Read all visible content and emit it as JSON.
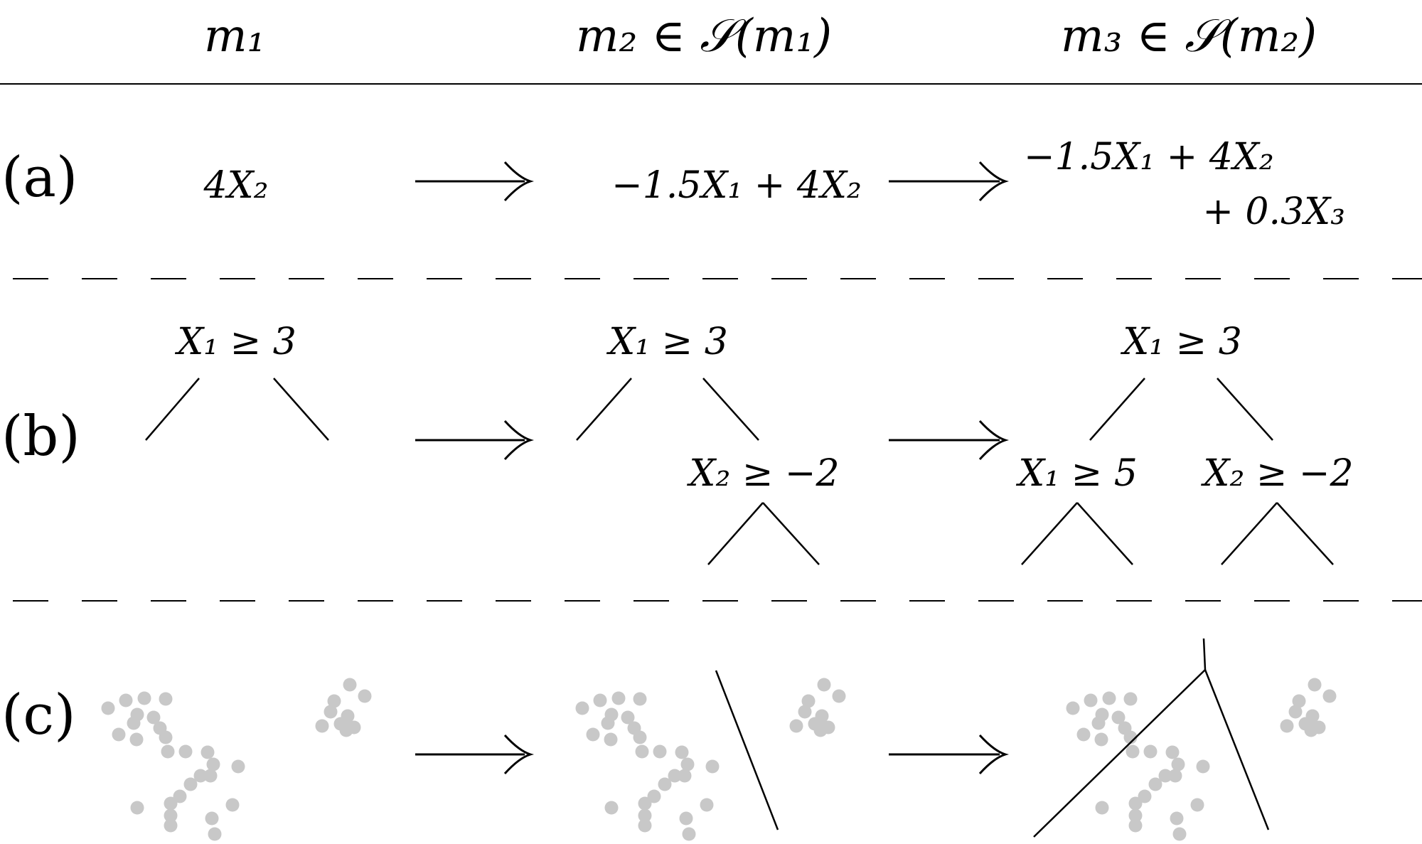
{
  "header": {
    "col1": "m₁",
    "col2": "m₂ ∈ 𝒮(m₁)",
    "col3": "m₃ ∈ 𝒮(m₂)"
  },
  "rows": {
    "a": {
      "label": "(a)",
      "m1": "4X₂",
      "m2": "−1.5X₁ + 4X₂",
      "m3_line1": "−1.5X₁ + 4X₂",
      "m3_line2": "+ 0.3X₃"
    },
    "b": {
      "label": "(b)",
      "m1_root": "X₁ ≥ 3",
      "m2_root": "X₁ ≥ 3",
      "m2_right": "X₂ ≥ −2",
      "m3_root": "X₁ ≥ 3",
      "m3_left": "X₁ ≥ 5",
      "m3_right": "X₂ ≥ −2"
    },
    "c": {
      "label": "(c)"
    }
  },
  "colors": {
    "ink": "#000000",
    "points": "#c8c8c8"
  }
}
